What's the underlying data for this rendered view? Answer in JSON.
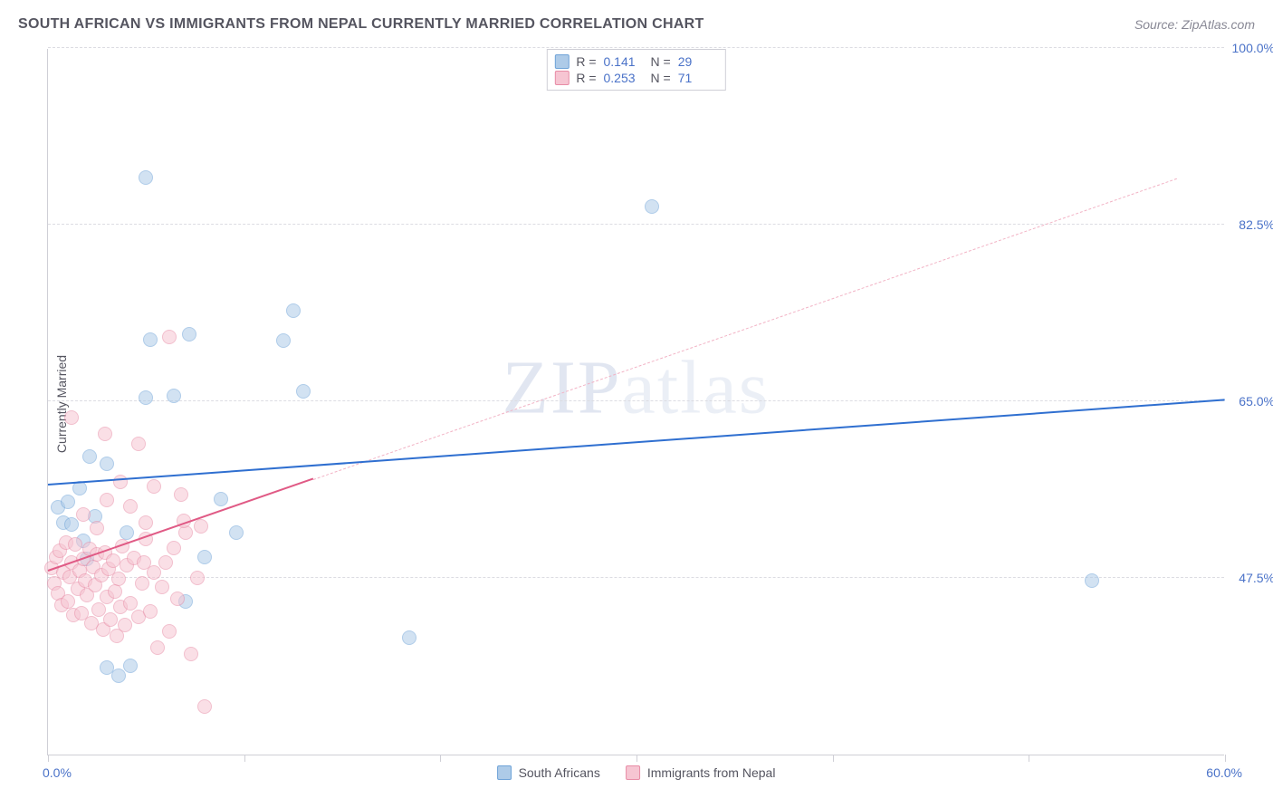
{
  "title": "SOUTH AFRICAN VS IMMIGRANTS FROM NEPAL CURRENTLY MARRIED CORRELATION CHART",
  "source": "Source: ZipAtlas.com",
  "ylabel": "Currently Married",
  "watermark_a": "ZIP",
  "watermark_b": "atlas",
  "chart": {
    "type": "scatter",
    "xlim": [
      0,
      60
    ],
    "ylim": [
      30,
      100
    ],
    "x_ticks": [
      0,
      10,
      20,
      30,
      40,
      50,
      60
    ],
    "y_gridlines": [
      47.5,
      65.0,
      82.5,
      100.0
    ],
    "y_labels": [
      "47.5%",
      "65.0%",
      "82.5%",
      "100.0%"
    ],
    "x_label_min": "0.0%",
    "x_label_max": "60.0%",
    "background_color": "#ffffff",
    "grid_color": "#dcdce2",
    "axis_color": "#cfcfd6",
    "point_radius": 8,
    "series": [
      {
        "name": "South Africans",
        "label": "South Africans",
        "fill": "#aecbe8",
        "stroke": "#6fa3d8",
        "fill_opacity": 0.55,
        "R": "0.141",
        "N": "29",
        "trend": {
          "x1": 0,
          "y1": 56.7,
          "x2": 60,
          "y2": 65.1,
          "color": "#2f6fd0",
          "width": 2.2,
          "dash": false
        },
        "points": [
          [
            0.5,
            54.5
          ],
          [
            0.8,
            53.0
          ],
          [
            1.0,
            55.0
          ],
          [
            1.2,
            52.8
          ],
          [
            1.6,
            56.4
          ],
          [
            2.0,
            49.4
          ],
          [
            3.0,
            58.8
          ],
          [
            1.8,
            51.2
          ],
          [
            2.4,
            53.6
          ],
          [
            3.0,
            38.6
          ],
          [
            4.2,
            38.8
          ],
          [
            4.0,
            52.0
          ],
          [
            5.0,
            87.2
          ],
          [
            5.2,
            71.1
          ],
          [
            7.2,
            71.6
          ],
          [
            7.0,
            45.2
          ],
          [
            6.4,
            65.5
          ],
          [
            5.0,
            65.4
          ],
          [
            8.0,
            49.6
          ],
          [
            8.8,
            55.3
          ],
          [
            9.6,
            52.0
          ],
          [
            12.0,
            71.0
          ],
          [
            12.5,
            74.0
          ],
          [
            13.0,
            66.0
          ],
          [
            18.4,
            41.6
          ],
          [
            30.8,
            84.3
          ],
          [
            53.2,
            47.2
          ],
          [
            3.6,
            37.8
          ],
          [
            2.1,
            59.5
          ]
        ]
      },
      {
        "name": "Immigrants from Nepal",
        "label": "Immigrants from Nepal",
        "fill": "#f6c5d2",
        "stroke": "#e88ca6",
        "fill_opacity": 0.55,
        "R": "0.253",
        "N": "71",
        "trend_solid": {
          "x1": 0,
          "y1": 48.1,
          "x2": 13.5,
          "y2": 57.2,
          "color": "#e05a85",
          "width": 2.2,
          "dash": false
        },
        "trend_dash": {
          "x1": 13.5,
          "y1": 57.2,
          "x2": 57.5,
          "y2": 87.0,
          "color": "#f2b3c5",
          "width": 1.3,
          "dash": true
        },
        "points": [
          [
            0.2,
            48.5
          ],
          [
            0.3,
            47.0
          ],
          [
            0.4,
            49.6
          ],
          [
            0.5,
            46.0
          ],
          [
            0.6,
            50.2
          ],
          [
            0.7,
            44.8
          ],
          [
            0.8,
            48.0
          ],
          [
            0.9,
            51.0
          ],
          [
            1.0,
            45.2
          ],
          [
            1.1,
            47.6
          ],
          [
            1.2,
            49.0
          ],
          [
            1.3,
            43.8
          ],
          [
            1.4,
            50.8
          ],
          [
            1.5,
            46.4
          ],
          [
            1.6,
            48.2
          ],
          [
            1.7,
            44.0
          ],
          [
            1.8,
            49.4
          ],
          [
            1.9,
            47.2
          ],
          [
            2.0,
            45.8
          ],
          [
            2.1,
            50.4
          ],
          [
            2.2,
            43.0
          ],
          [
            2.3,
            48.6
          ],
          [
            2.4,
            46.8
          ],
          [
            2.5,
            49.8
          ],
          [
            2.6,
            44.4
          ],
          [
            2.7,
            47.8
          ],
          [
            2.8,
            42.4
          ],
          [
            2.9,
            50.0
          ],
          [
            3.0,
            45.6
          ],
          [
            3.1,
            48.4
          ],
          [
            3.2,
            43.4
          ],
          [
            3.3,
            49.2
          ],
          [
            3.4,
            46.2
          ],
          [
            3.5,
            41.8
          ],
          [
            3.6,
            47.4
          ],
          [
            3.7,
            44.6
          ],
          [
            3.8,
            50.6
          ],
          [
            3.9,
            42.8
          ],
          [
            4.0,
            48.8
          ],
          [
            4.2,
            45.0
          ],
          [
            4.4,
            49.5
          ],
          [
            4.6,
            43.6
          ],
          [
            4.8,
            47.0
          ],
          [
            5.0,
            51.4
          ],
          [
            5.2,
            44.2
          ],
          [
            5.4,
            48.0
          ],
          [
            5.6,
            40.6
          ],
          [
            5.8,
            46.6
          ],
          [
            6.0,
            49.0
          ],
          [
            6.2,
            42.2
          ],
          [
            6.4,
            50.5
          ],
          [
            6.6,
            45.4
          ],
          [
            7.0,
            52.0
          ],
          [
            7.3,
            40.0
          ],
          [
            7.6,
            47.5
          ],
          [
            8.0,
            34.8
          ],
          [
            1.2,
            63.4
          ],
          [
            2.9,
            61.8
          ],
          [
            4.6,
            60.8
          ],
          [
            6.8,
            55.8
          ],
          [
            3.0,
            55.2
          ],
          [
            5.0,
            53.0
          ],
          [
            6.2,
            71.4
          ],
          [
            4.2,
            54.6
          ],
          [
            1.8,
            53.8
          ],
          [
            2.5,
            52.4
          ],
          [
            3.7,
            57.0
          ],
          [
            5.4,
            56.6
          ],
          [
            6.9,
            53.2
          ],
          [
            7.8,
            52.6
          ],
          [
            4.9,
            49.0
          ]
        ]
      }
    ]
  },
  "legend_top": {
    "r_label": "R =",
    "n_label": "N ="
  }
}
